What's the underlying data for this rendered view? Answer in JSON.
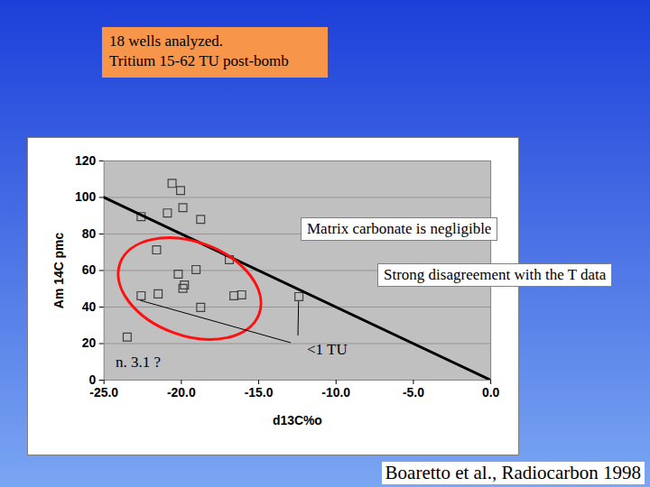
{
  "chart_data": {
    "type": "scatter",
    "title": [
      "18 wells analyzed.",
      "Tritium 15-62 TU post-bomb"
    ],
    "caption": "Boaretto et al., Radiocarbon 1998",
    "x_label": "d13C%o",
    "y_label": "Am 14C pmc",
    "xlim": [
      -25,
      0
    ],
    "ylim": [
      0,
      120
    ],
    "xticks": [
      {
        "value": -25,
        "label": "-25.0"
      },
      {
        "value": -20,
        "label": "-20.0"
      },
      {
        "value": -15,
        "label": "-15.0"
      },
      {
        "value": -10,
        "label": "-10.0"
      },
      {
        "value": -5,
        "label": "-5.0"
      },
      {
        "value": 0,
        "label": "0.0"
      }
    ],
    "yticks": [
      0,
      20,
      40,
      60,
      80,
      100,
      120
    ],
    "grid": "y",
    "series": [
      {
        "type": "scatter",
        "marker": "square",
        "color": "#404040",
        "x": [
          -20.6,
          -20.05,
          -19.9,
          -20.9,
          -22.6,
          -18.75,
          -21.6,
          -16.9,
          -19.05,
          -20.2,
          -19.8,
          -19.9,
          -18.75,
          -22.6,
          -21.5,
          -16.6,
          -16.1,
          -12.4,
          -23.5
        ],
        "values": [
          107.7,
          103.8,
          94.4,
          91.5,
          89.5,
          88,
          71.3,
          65.9,
          60.5,
          58,
          52.1,
          50.2,
          39.8,
          46.2,
          47.2,
          46.2,
          46.7,
          45.7,
          23.6
        ]
      },
      {
        "type": "line",
        "line_style": "solid",
        "color": "#000000",
        "x": [
          -25,
          0
        ],
        "values": [
          100,
          0
        ]
      }
    ],
    "annotations": [
      {
        "text": "Matrix carbonate is negligible"
      },
      {
        "text": "Strong disagreement with the T data"
      },
      {
        "text": "n. 3.1 ?"
      },
      {
        "text": "<1 TU",
        "points_to": [
          [
            -22.6,
            46.2
          ],
          [
            -12.4,
            45.7
          ]
        ]
      }
    ]
  }
}
